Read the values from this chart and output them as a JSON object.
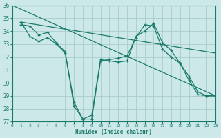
{
  "background_color": "#cce8e8",
  "grid_color": "#aacccc",
  "line_color": "#1a7a6a",
  "xlabel": "Humidex (Indice chaleur)",
  "xlim": [
    0,
    23
  ],
  "ylim": [
    27,
    36
  ],
  "yticks": [
    27,
    28,
    29,
    30,
    31,
    32,
    33,
    34,
    35,
    36
  ],
  "xticks": [
    0,
    1,
    2,
    3,
    4,
    5,
    6,
    7,
    8,
    9,
    10,
    11,
    12,
    13,
    14,
    15,
    16,
    17,
    18,
    19,
    20,
    21,
    22,
    23
  ],
  "lines": [
    {
      "x": [
        0,
        23
      ],
      "y": [
        36,
        29.0
      ],
      "has_markers": false
    },
    {
      "x": [
        1,
        23
      ],
      "y": [
        34.7,
        32.3
      ],
      "has_markers": false
    },
    {
      "x": [
        1,
        2,
        3,
        4,
        5,
        6,
        7,
        8,
        9,
        10,
        11,
        12,
        13,
        14,
        15,
        16,
        17,
        18,
        19,
        20,
        21,
        22,
        23
      ],
      "y": [
        34.5,
        34.4,
        33.7,
        33.9,
        33.1,
        32.4,
        28.2,
        27.2,
        27.2,
        31.7,
        31.8,
        31.9,
        32.1,
        33.5,
        34.5,
        34.4,
        32.6,
        32.0,
        31.5,
        30.2,
        29.1,
        29.0,
        29.0
      ],
      "has_markers": true
    },
    {
      "x": [
        1,
        2,
        3,
        4,
        5,
        6,
        7,
        8,
        9,
        10,
        11,
        12,
        13,
        14,
        15,
        16,
        17,
        18,
        19,
        20,
        21,
        22,
        23
      ],
      "y": [
        34.7,
        33.6,
        33.2,
        33.5,
        33.0,
        32.3,
        28.5,
        27.2,
        27.5,
        31.8,
        31.7,
        31.6,
        31.7,
        33.6,
        34.0,
        34.6,
        33.1,
        32.5,
        31.5,
        30.5,
        29.3,
        29.0,
        29.0
      ],
      "has_markers": true
    }
  ]
}
